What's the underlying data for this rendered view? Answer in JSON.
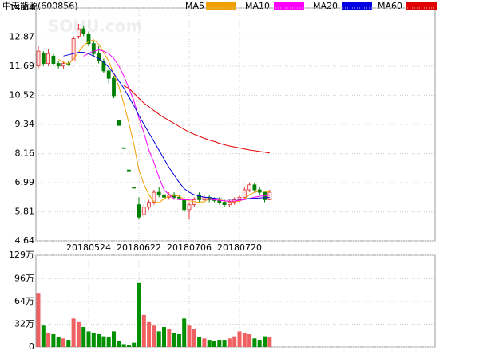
{
  "chart_data": {
    "type": "candlestick",
    "title": "中天能源(600856)",
    "watermark": "SOHU.com",
    "categories": [
      null,
      null,
      null,
      null,
      null,
      null,
      null,
      null,
      null,
      null,
      "20180524",
      null,
      null,
      null,
      null,
      null,
      null,
      null,
      null,
      null,
      "20180622",
      null,
      null,
      null,
      null,
      null,
      null,
      null,
      null,
      null,
      "20180706",
      null,
      null,
      null,
      null,
      null,
      null,
      null,
      null,
      null,
      "20180720",
      null,
      null,
      null,
      null,
      null,
      null
    ],
    "open": [
      11.7,
      12.2,
      11.8,
      12.1,
      11.8,
      11.7,
      11.8,
      11.9,
      12.9,
      13.2,
      13.0,
      12.6,
      12.2,
      11.9,
      11.5,
      11.2,
      9.5,
      8.4,
      7.5,
      6.8,
      6.1,
      5.7,
      6.0,
      6.2,
      6.6,
      6.5,
      6.4,
      6.5,
      6.4,
      6.3,
      5.9,
      6.1,
      6.5,
      6.3,
      6.4,
      6.3,
      6.3,
      6.2,
      6.1,
      6.2,
      6.3,
      6.4,
      6.7,
      6.9,
      6.7,
      6.6,
      6.3
    ],
    "high": [
      12.5,
      12.3,
      12.4,
      12.2,
      11.9,
      11.9,
      11.9,
      12.9,
      13.4,
      13.3,
      13.1,
      12.7,
      12.5,
      12.0,
      11.6,
      11.3,
      9.5,
      8.4,
      7.5,
      6.8,
      6.4,
      6.1,
      6.3,
      6.7,
      6.8,
      6.6,
      6.6,
      6.6,
      6.5,
      6.4,
      6.2,
      6.4,
      6.6,
      6.5,
      6.5,
      6.4,
      6.4,
      6.3,
      6.3,
      6.4,
      6.5,
      6.8,
      7.0,
      7.0,
      6.8,
      6.6,
      6.7
    ],
    "low": [
      11.6,
      11.7,
      11.7,
      11.7,
      11.6,
      11.6,
      11.7,
      11.9,
      12.8,
      12.9,
      12.5,
      12.1,
      11.8,
      11.4,
      11.0,
      10.4,
      9.3,
      8.4,
      7.5,
      6.8,
      5.5,
      5.6,
      5.9,
      6.1,
      6.4,
      6.3,
      6.3,
      6.3,
      6.3,
      5.8,
      5.5,
      6.0,
      6.2,
      6.2,
      6.2,
      6.2,
      6.1,
      6.0,
      6.0,
      6.1,
      6.2,
      6.3,
      6.6,
      6.6,
      6.5,
      6.2,
      6.3
    ],
    "close": [
      12.3,
      11.8,
      12.2,
      11.8,
      11.7,
      11.8,
      11.8,
      12.8,
      13.2,
      13.0,
      12.6,
      12.2,
      11.9,
      11.5,
      11.2,
      10.5,
      9.3,
      8.4,
      7.5,
      6.8,
      5.6,
      6.0,
      6.2,
      6.6,
      6.5,
      6.4,
      6.5,
      6.4,
      6.4,
      5.9,
      6.1,
      6.3,
      6.3,
      6.4,
      6.3,
      6.3,
      6.2,
      6.1,
      6.2,
      6.3,
      6.4,
      6.7,
      6.9,
      6.7,
      6.6,
      6.3,
      6.6
    ],
    "up_color": "#e03030",
    "down_color": "#008000",
    "ylim": [
      4.64,
      14.04
    ],
    "yticks": [
      14.04,
      12.87,
      11.69,
      10.52,
      9.34,
      8.16,
      6.99,
      5.81,
      4.64
    ],
    "ma": [
      {
        "name": "MA5",
        "color": "#f0a000",
        "values": [
          null,
          null,
          null,
          null,
          11.96,
          11.86,
          11.78,
          11.98,
          12.26,
          12.52,
          12.68,
          12.76,
          12.58,
          12.24,
          11.88,
          11.38,
          10.88,
          10.18,
          9.4,
          8.54,
          7.5,
          6.92,
          6.5,
          6.22,
          6.18,
          6.34,
          6.44,
          6.48,
          6.44,
          6.32,
          6.26,
          6.22,
          6.2,
          6.22,
          6.36,
          6.36,
          6.3,
          6.26,
          6.22,
          6.22,
          6.24,
          6.34,
          6.5,
          6.6,
          6.66,
          6.64,
          6.62
        ]
      },
      {
        "name": "MA10",
        "color": "#ff00ff",
        "values": [
          null,
          null,
          null,
          null,
          null,
          null,
          null,
          null,
          null,
          12.1,
          12.2,
          12.3,
          12.35,
          12.3,
          12.2,
          12.0,
          11.7,
          11.3,
          10.8,
          10.3,
          9.6,
          9.0,
          8.3,
          7.8,
          7.2,
          6.7,
          6.5,
          6.35,
          6.3,
          6.3,
          6.3,
          6.33,
          6.34,
          6.33,
          6.32,
          6.3,
          6.28,
          6.26,
          6.24,
          6.25,
          6.28,
          6.3,
          6.35,
          6.4,
          6.44,
          6.46,
          6.48
        ]
      },
      {
        "name": "MA20",
        "color": "#0000e0",
        "values": [
          null,
          null,
          null,
          null,
          null,
          12.1,
          12.15,
          12.2,
          12.25,
          12.25,
          12.2,
          12.1,
          12.0,
          11.85,
          11.65,
          11.4,
          11.1,
          10.8,
          10.45,
          10.1,
          9.7,
          9.35,
          9.0,
          8.65,
          8.3,
          7.95,
          7.6,
          7.3,
          7.0,
          6.75,
          6.6,
          6.5,
          6.45,
          6.4,
          6.38,
          6.36,
          6.34,
          6.33,
          6.32,
          6.32,
          6.32,
          6.33,
          6.35,
          6.36,
          6.37,
          6.38,
          6.39
        ]
      },
      {
        "name": "MA60",
        "color": "#e00000",
        "values": [
          null,
          null,
          null,
          null,
          null,
          null,
          null,
          null,
          null,
          null,
          null,
          null,
          null,
          null,
          null,
          null,
          null,
          10.9,
          10.8,
          10.6,
          10.4,
          10.2,
          10.05,
          9.9,
          9.75,
          9.62,
          9.5,
          9.38,
          9.26,
          9.14,
          9.03,
          8.94,
          8.86,
          8.78,
          8.71,
          8.65,
          8.58,
          8.52,
          8.47,
          8.43,
          8.39,
          8.35,
          8.31,
          8.28,
          8.25,
          8.22,
          8.19
        ]
      }
    ],
    "volume": {
      "values": [
        76,
        30,
        20,
        18,
        14,
        12,
        10,
        40,
        35,
        28,
        22,
        20,
        18,
        15,
        14,
        22,
        8,
        4,
        3,
        6,
        90,
        45,
        35,
        30,
        22,
        28,
        25,
        20,
        18,
        40,
        30,
        25,
        14,
        12,
        10,
        8,
        10,
        10,
        12,
        15,
        22,
        20,
        18,
        12,
        10,
        15,
        14
      ],
      "up_color": "#f06060",
      "down_color": "#009000",
      "ylim": [
        0,
        129
      ],
      "yticks": [
        {
          "value": 129,
          "label": "129万"
        },
        {
          "value": 96,
          "label": "96万"
        },
        {
          "value": 64,
          "label": "64万"
        },
        {
          "value": 32,
          "label": "32万"
        },
        0
      ]
    }
  }
}
